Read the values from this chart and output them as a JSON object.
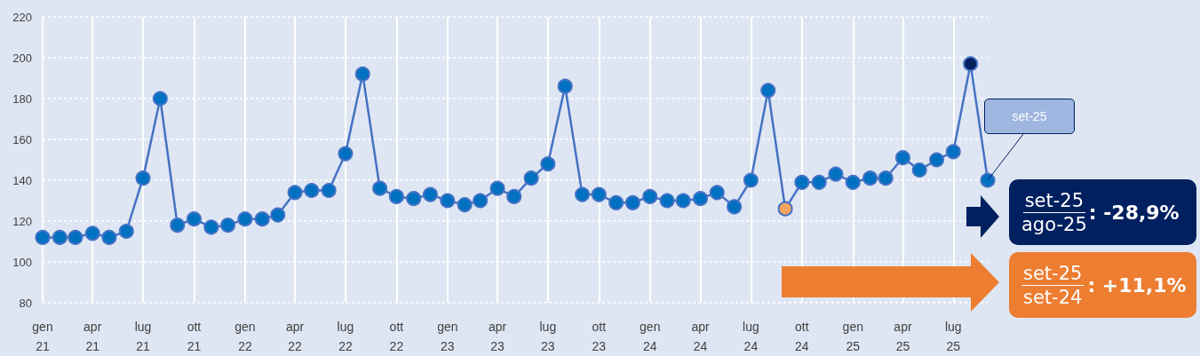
{
  "chart_data": {
    "type": "line",
    "x": [
      "2021-01",
      "2021-02",
      "2021-03",
      "2021-04",
      "2021-05",
      "2021-06",
      "2021-07",
      "2021-08",
      "2021-09",
      "2021-10",
      "2021-11",
      "2021-12",
      "2022-01",
      "2022-02",
      "2022-03",
      "2022-04",
      "2022-05",
      "2022-06",
      "2022-07",
      "2022-08",
      "2022-09",
      "2022-10",
      "2022-11",
      "2022-12",
      "2023-01",
      "2023-02",
      "2023-03",
      "2023-04",
      "2023-05",
      "2023-06",
      "2023-07",
      "2023-08",
      "2023-09",
      "2023-10",
      "2023-11",
      "2023-12",
      "2024-01",
      "2024-02",
      "2024-03",
      "2024-04",
      "2024-05",
      "2024-06",
      "2024-07",
      "2024-08",
      "2024-09",
      "2024-10",
      "2024-11",
      "2024-12",
      "2025-01",
      "2025-02",
      "2025-03",
      "2025-04",
      "2025-05",
      "2025-06",
      "2025-07",
      "2025-08",
      "2025-09"
    ],
    "series": [
      {
        "color": "#4472c4",
        "values": [
          112,
          112,
          112,
          114,
          112,
          115,
          141,
          180,
          118,
          121,
          117,
          118,
          121,
          121,
          123,
          134,
          135,
          135,
          153,
          192,
          136,
          132,
          131,
          133,
          130,
          128,
          130,
          136,
          132,
          141,
          148,
          186,
          133,
          133,
          129,
          129,
          132,
          130,
          130,
          131,
          134,
          127,
          140,
          184,
          126,
          139,
          139,
          143,
          139,
          141,
          141,
          151,
          145,
          150,
          154,
          197,
          140
        ],
        "colors": [
          "#0070c0",
          "#0070c0",
          "#0070c0",
          "#0070c0",
          "#0070c0",
          "#0070c0",
          "#0070c0",
          "#0070c0",
          "#0070c0",
          "#0070c0",
          "#0070c0",
          "#0070c0",
          "#0070c0",
          "#0070c0",
          "#0070c0",
          "#0070c0",
          "#0070c0",
          "#0070c0",
          "#0070c0",
          "#0070c0",
          "#0070c0",
          "#0070c0",
          "#0070c0",
          "#0070c0",
          "#0070c0",
          "#0070c0",
          "#0070c0",
          "#0070c0",
          "#0070c0",
          "#0070c0",
          "#0070c0",
          "#0070c0",
          "#0070c0",
          "#0070c0",
          "#0070c0",
          "#0070c0",
          "#0070c0",
          "#0070c0",
          "#0070c0",
          "#0070c0",
          "#0070c0",
          "#0070c0",
          "#0070c0",
          "#0070c0",
          "#f4a460",
          "#0070c0",
          "#0070c0",
          "#0070c0",
          "#0070c0",
          "#0070c0",
          "#0070c0",
          "#0070c0",
          "#0070c0",
          "#0070c0",
          "#0070c0",
          "#002060",
          "#0070c0"
        ]
      }
    ],
    "xlim": [
      "2021-01",
      "2025-09"
    ],
    "xticks": [
      {
        "value": "2021-01",
        "label": "gen\n21"
      },
      {
        "value": "2021-04",
        "label": "apr\n21"
      },
      {
        "value": "2021-07",
        "label": "lug\n21"
      },
      {
        "value": "2021-10",
        "label": "ott\n21"
      },
      {
        "value": "2022-01",
        "label": "gen\n22"
      },
      {
        "value": "2022-04",
        "label": "apr\n22"
      },
      {
        "value": "2022-07",
        "label": "lug\n22"
      },
      {
        "value": "2022-10",
        "label": "ott\n22"
      },
      {
        "value": "2023-01",
        "label": "gen\n23"
      },
      {
        "value": "2023-04",
        "label": "apr\n23"
      },
      {
        "value": "2023-07",
        "label": "lug\n23"
      },
      {
        "value": "2023-10",
        "label": "ott\n23"
      },
      {
        "value": "2024-01",
        "label": "gen\n24"
      },
      {
        "value": "2024-04",
        "label": "apr\n24"
      },
      {
        "value": "2024-07",
        "label": "lug\n24"
      },
      {
        "value": "2024-10",
        "label": "ott\n24"
      },
      {
        "value": "2025-01",
        "label": "gen\n25"
      },
      {
        "value": "2025-04",
        "label": "apr\n25"
      },
      {
        "value": "2025-07",
        "label": "lug\n25"
      }
    ],
    "ylim": [
      80,
      220
    ],
    "yticks": [
      80,
      100,
      120,
      140,
      160,
      180,
      200,
      220
    ],
    "grid": true,
    "marker": "circle",
    "line_style": "solid",
    "annotations": [
      {
        "text": "set-25",
        "x": "2025-09",
        "y": 140
      },
      "set-25",
      "ago-25",
      ": -28,9%",
      "set-25",
      "set-24",
      ": +11,1%"
    ]
  }
}
